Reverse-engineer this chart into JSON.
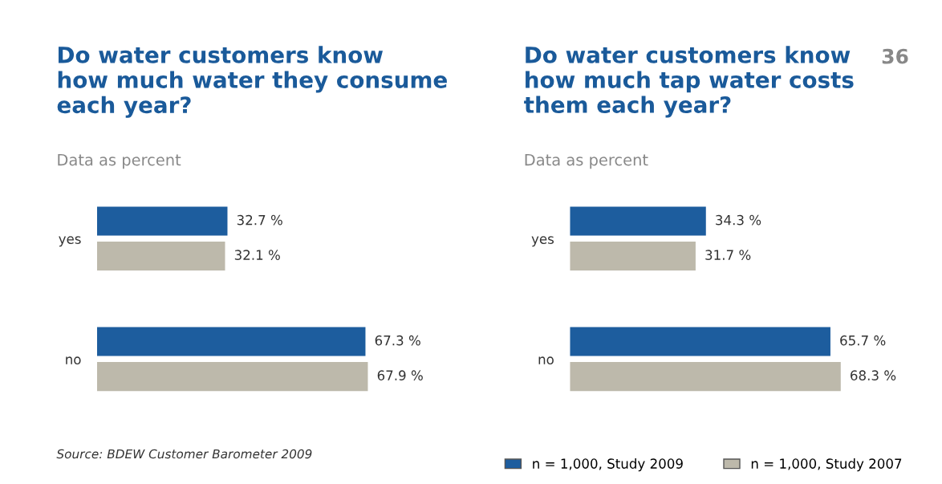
{
  "chart_data": [
    {
      "type": "bar",
      "orientation": "horizontal",
      "title": "Do water customers know\nhow much water they consume\neach year?",
      "subtitle": "Data as percent",
      "categories": [
        "yes",
        "no"
      ],
      "series": [
        {
          "color": "#1d5d9e",
          "values": [
            32.7,
            67.3
          ],
          "value_labels": [
            "32.7 %",
            "67.3 %"
          ]
        },
        {
          "color": "#bdb9ab",
          "values": [
            32.1,
            67.9
          ],
          "value_labels": [
            "32.1 %",
            "67.9 %"
          ]
        }
      ],
      "annotations": [
        "Source: BDEW Customer Barometer 2009"
      ]
    },
    {
      "type": "bar",
      "orientation": "horizontal",
      "title": "Do water customers know\nhow much tap water costs\nthem each year?",
      "subtitle": "Data as percent",
      "categories": [
        "yes",
        "no"
      ],
      "series": [
        {
          "name": "n = 1,000, Study 2009",
          "color": "#1d5d9e",
          "values": [
            34.3,
            65.7
          ],
          "value_labels": [
            "34.3 %",
            "65.7 %"
          ]
        },
        {
          "name": "n = 1,000, Study 2007",
          "color": "#bdb9ab",
          "values": [
            31.7,
            68.3
          ],
          "value_labels": [
            "31.7 %",
            "68.3 %"
          ]
        }
      ],
      "annotations": [
        "36"
      ],
      "legend": "bottom right"
    }
  ]
}
